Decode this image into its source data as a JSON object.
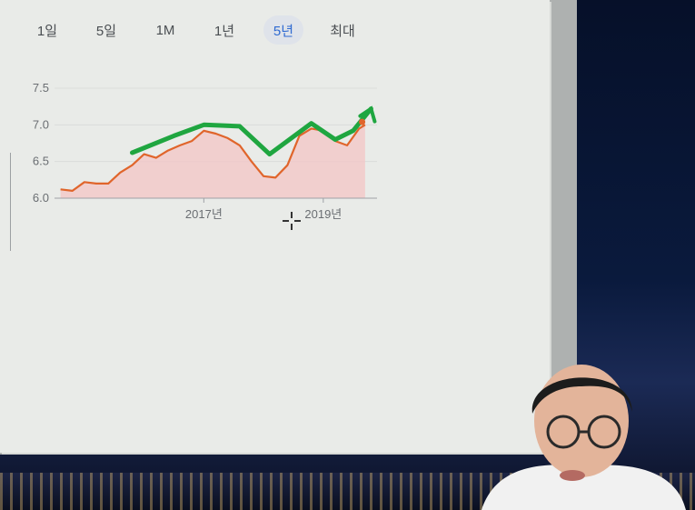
{
  "range_tabs": [
    {
      "label": "1일"
    },
    {
      "label": "5일"
    },
    {
      "label": "1M"
    },
    {
      "label": "1년"
    },
    {
      "label": "5년",
      "selected": true
    },
    {
      "label": "최대"
    }
  ],
  "chart_data": {
    "type": "area",
    "ylim": [
      6.0,
      7.5
    ],
    "y_ticks": [
      "6.0",
      "6.5",
      "7.0",
      "7.5"
    ],
    "x_ticks": [
      "2017년",
      "2019년"
    ],
    "grid": true,
    "series": [
      {
        "x": [
          2014.6,
          2014.8,
          2015.0,
          2015.2,
          2015.4,
          2015.6,
          2015.8,
          2016.0,
          2016.2,
          2016.4,
          2016.6,
          2016.8,
          2017.0,
          2017.2,
          2017.4,
          2017.6,
          2017.8,
          2018.0,
          2018.2,
          2018.4,
          2018.6,
          2018.8,
          2019.0,
          2019.2,
          2019.4,
          2019.6,
          2019.7
        ],
        "values": [
          6.12,
          6.1,
          6.22,
          6.2,
          6.2,
          6.35,
          6.45,
          6.6,
          6.55,
          6.65,
          6.72,
          6.78,
          6.92,
          6.88,
          6.82,
          6.72,
          6.5,
          6.3,
          6.28,
          6.45,
          6.85,
          6.95,
          6.92,
          6.78,
          6.72,
          6.95,
          7.0
        ],
        "color": "#e0652b",
        "fill": "#f3c6c6"
      }
    ],
    "annotation_color": "#1fa640"
  }
}
